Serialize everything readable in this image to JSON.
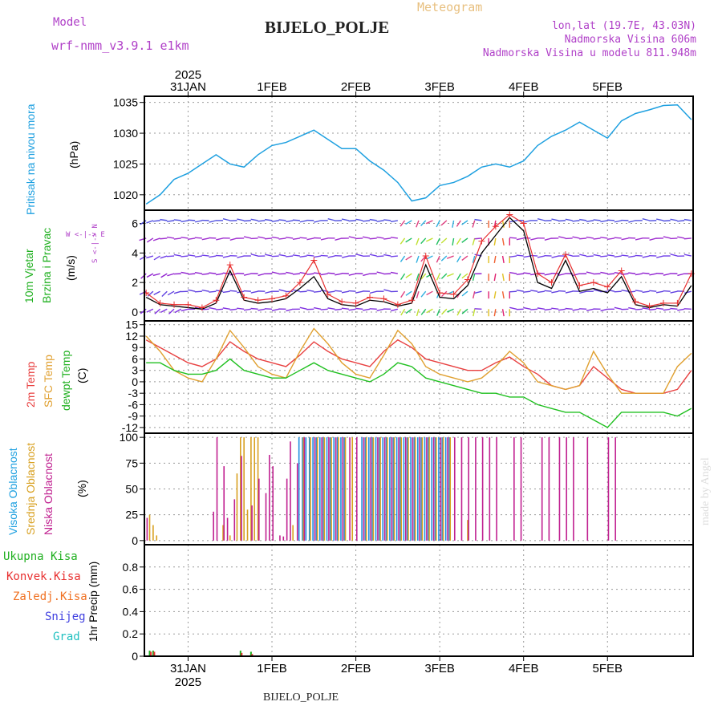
{
  "header": {
    "model_label": "Model",
    "model_name": "wrf-nmm_v3.9.1 e1km",
    "title": "Meteogram",
    "station": "BIJELO_POLJE",
    "lonlat": "lon,lat (19.7E, 43.03N)",
    "altitude": "Nadmorska Visina 606m",
    "model_altitude": "Nadmorska Visina u modelu 811.948m"
  },
  "footer": {
    "station": "BIJELO_POLJE",
    "watermark": "made by Angel"
  },
  "time_axis": {
    "top_year": "2025",
    "bottom_year": "2025",
    "labels": [
      "31JAN",
      "1FEB",
      "2FEB",
      "3FEB",
      "4FEB",
      "5FEB"
    ],
    "start_hour": -12.5,
    "end_hour": 144.5
  },
  "colors": {
    "pressure": "#1ea0e0",
    "wind_speed": "#000000",
    "gust": "#e83030",
    "temp_2m": "#e84040",
    "temp_sfc": "#e0a030",
    "dewpoint": "#20c020",
    "cloud_high": "#2090e0",
    "cloud_mid": "#d8a020",
    "cloud_low": "#c02090",
    "precip_total": "#20b020",
    "precip_conv": "#e83030",
    "freezing": "#f07020",
    "snow": "#4040e0",
    "hail": "#20c0c0"
  },
  "panels": {
    "pressure": {
      "labels": [
        "Pritisak na nivou mora",
        "(hPa)"
      ],
      "ticks": [
        "1020",
        "1025",
        "1030",
        "1035"
      ]
    },
    "wind": {
      "labels": [
        "10m Vjetar",
        "Brzina i Pravac",
        "(m/s)"
      ],
      "compass": "W <-|-> E",
      "compass_v": "S <-|-> N",
      "ticks": [
        "0",
        "2",
        "4",
        "6"
      ]
    },
    "temp": {
      "labels": [
        "2m Temp",
        "SFC Temp",
        "dewpt Temp",
        "(C)"
      ],
      "ticks": [
        "-12",
        "-9",
        "-6",
        "-3",
        "0",
        "3",
        "6",
        "9",
        "12",
        "15"
      ]
    },
    "cloud": {
      "labels": [
        "Visoka Oblacnost",
        "Srednja Oblacnost",
        "Niska Oblacnost",
        "(%)"
      ],
      "ticks": [
        "0",
        "25",
        "50",
        "75",
        "100"
      ]
    },
    "precip": {
      "labels": [
        "Ukupna Kisa",
        "Konvek.Kisa",
        "Zaledj.Kisa",
        "Snijeg",
        "Grad",
        "1hr Precip (mm)"
      ],
      "ticks": [
        "0",
        "0.2",
        "0.4",
        "0.6",
        "0.8"
      ]
    }
  },
  "chart_data": [
    {
      "type": "line",
      "name": "pressure",
      "ylabel": "Pritisak na nivou mora (hPa)",
      "ylim": [
        1017.5,
        1036
      ],
      "x_hours": [
        -12,
        -8,
        -4,
        0,
        4,
        8,
        12,
        16,
        20,
        24,
        28,
        32,
        36,
        40,
        44,
        48,
        52,
        56,
        60,
        64,
        68,
        72,
        76,
        80,
        84,
        88,
        92,
        96,
        100,
        104,
        108,
        112,
        116,
        120,
        124,
        128,
        132,
        136,
        140,
        144
      ],
      "series": [
        {
          "values": [
            1018.5,
            1020,
            1022.5,
            1023.5,
            1025,
            1026.5,
            1025,
            1024.5,
            1026.5,
            1028,
            1028.5,
            1029.5,
            1030.5,
            1029,
            1027.5,
            1027.5,
            1025.5,
            1024,
            1022,
            1019,
            1019.5,
            1021.5,
            1022,
            1023,
            1024.5,
            1025,
            1024.5,
            1025.5,
            1028,
            1029.5,
            1030.5,
            1031.8,
            1030.5,
            1029.2,
            1032,
            1033.2,
            1033.8,
            1034.5,
            1034.6,
            1032.2
          ]
        }
      ]
    },
    {
      "type": "line",
      "name": "wind",
      "ylabel": "(m/s)",
      "ylim": [
        -0.6,
        6.9
      ],
      "x_hours": [
        -12,
        -8,
        -4,
        0,
        4,
        8,
        12,
        16,
        20,
        24,
        28,
        32,
        36,
        40,
        44,
        48,
        52,
        56,
        60,
        64,
        68,
        72,
        76,
        80,
        84,
        88,
        92,
        96,
        100,
        104,
        108,
        112,
        116,
        120,
        124,
        128,
        132,
        136,
        140,
        144
      ],
      "series": [
        {
          "values": [
            1.0,
            0.5,
            0.4,
            0.3,
            0.2,
            0.6,
            2.8,
            0.8,
            0.6,
            0.7,
            0.9,
            1.6,
            2.4,
            0.9,
            0.5,
            0.4,
            0.8,
            0.7,
            0.4,
            0.6,
            3.2,
            1.0,
            0.9,
            1.8,
            4.0,
            5.2,
            6.4,
            5.5,
            2.0,
            1.6,
            3.5,
            1.4,
            1.6,
            1.3,
            2.4,
            0.5,
            0.3,
            0.5,
            0.4,
            1.8
          ]
        },
        {
          "values": [
            1.3,
            0.6,
            0.5,
            0.5,
            0.3,
            0.8,
            3.2,
            1.0,
            0.8,
            0.9,
            1.1,
            2.0,
            3.5,
            1.2,
            0.7,
            0.6,
            1.0,
            0.9,
            0.5,
            0.8,
            3.8,
            1.3,
            1.2,
            2.2,
            4.8,
            5.8,
            6.6,
            6.0,
            2.6,
            2.0,
            3.9,
            1.8,
            2.0,
            1.7,
            2.8,
            0.7,
            0.4,
            0.6,
            0.6,
            2.6
          ]
        }
      ]
    },
    {
      "type": "line",
      "name": "temperature",
      "ylabel": "(C)",
      "ylim": [
        -13.5,
        16
      ],
      "x_hours": [
        -12,
        -8,
        -4,
        0,
        4,
        8,
        12,
        16,
        20,
        24,
        28,
        32,
        36,
        40,
        44,
        48,
        52,
        56,
        60,
        64,
        68,
        72,
        76,
        80,
        84,
        88,
        92,
        96,
        100,
        104,
        108,
        112,
        116,
        120,
        124,
        128,
        132,
        136,
        140,
        144
      ],
      "series": [
        {
          "name": "2m Temp",
          "values": [
            11,
            9,
            7,
            5,
            4,
            6,
            10.5,
            8,
            6,
            5,
            4,
            7,
            10.5,
            8,
            6,
            5,
            4,
            8,
            11,
            9,
            6,
            5,
            4,
            3,
            3,
            5,
            6.5,
            4,
            2,
            -1,
            -2,
            -1,
            4,
            1,
            -2,
            -3,
            -3,
            -3,
            -2,
            3
          ]
        },
        {
          "name": "SFC Temp",
          "values": [
            12,
            8,
            3,
            1,
            0,
            6,
            13.5,
            9,
            4,
            2,
            1,
            8,
            14,
            10,
            5,
            2,
            1,
            7,
            13.5,
            10,
            4,
            2,
            1,
            0,
            1,
            4,
            8,
            5,
            0,
            -1,
            -2,
            -1,
            8,
            2,
            -3,
            -3,
            -3,
            -3,
            4,
            7.5
          ]
        },
        {
          "name": "dewpt Temp",
          "values": [
            5,
            5,
            3,
            2,
            2,
            3,
            6,
            3,
            2,
            1,
            1,
            3,
            5,
            3,
            2,
            1,
            0,
            2,
            5,
            4,
            1,
            0,
            -1,
            -2,
            -3,
            -3,
            -4,
            -4,
            -6,
            -7,
            -8,
            -8,
            -10,
            -12,
            -8,
            -8,
            -8,
            -8,
            -9,
            -7
          ]
        }
      ]
    },
    {
      "type": "bar",
      "name": "cloud cover",
      "ylabel": "(%)",
      "ylim": [
        -4,
        104
      ],
      "series": [
        {
          "name": "Visoka Oblacnost",
          "x_hours": [
            32,
            33,
            34,
            35,
            36,
            37,
            38,
            39,
            40,
            41,
            42,
            43,
            44,
            45,
            50,
            51,
            52,
            53,
            54,
            55,
            56,
            57,
            58,
            59,
            60,
            61,
            62,
            63,
            64,
            65,
            66,
            67,
            68,
            69,
            70,
            71,
            72,
            73,
            74,
            75
          ],
          "values": [
            100,
            100,
            100,
            100,
            100,
            100,
            100,
            100,
            100,
            100,
            100,
            100,
            100,
            100,
            100,
            100,
            100,
            100,
            100,
            100,
            100,
            100,
            100,
            100,
            100,
            100,
            100,
            100,
            100,
            100,
            100,
            100,
            100,
            100,
            100,
            100,
            100,
            100,
            100,
            100
          ]
        },
        {
          "name": "Srednja Oblacnost",
          "x_hours": [
            -11,
            -10,
            -9,
            10,
            12,
            14,
            15,
            16,
            17,
            18,
            19,
            20,
            30,
            33,
            35,
            37,
            39,
            41,
            43,
            45,
            47,
            51,
            53,
            55,
            57,
            59,
            61,
            63,
            65,
            67,
            69,
            71,
            73,
            75,
            80
          ],
          "values": [
            25,
            15,
            5,
            15,
            5,
            65,
            100,
            100,
            30,
            100,
            100,
            100,
            15,
            100,
            100,
            100,
            100,
            100,
            100,
            100,
            100,
            100,
            100,
            100,
            100,
            100,
            100,
            100,
            100,
            100,
            100,
            100,
            100,
            100,
            20
          ]
        },
        {
          "name": "Niska Oblacnost",
          "x_hours": [
            -12,
            7,
            8,
            10,
            11,
            13,
            15,
            18,
            20,
            22,
            23,
            24,
            26,
            27,
            28,
            29,
            31,
            33,
            36,
            38,
            40,
            42,
            44,
            46,
            48,
            50,
            52,
            54,
            56,
            58,
            60,
            62,
            64,
            66,
            68,
            70,
            72,
            74,
            76,
            78,
            80,
            82,
            84,
            86,
            88,
            93,
            95,
            101,
            103,
            106,
            108,
            110,
            114,
            120,
            122
          ],
          "values": [
            22,
            28,
            100,
            72,
            22,
            40,
            82,
            34,
            60,
            46,
            83,
            72,
            5,
            4,
            60,
            96,
            75,
            100,
            100,
            100,
            100,
            100,
            100,
            100,
            100,
            100,
            100,
            100,
            100,
            100,
            100,
            100,
            100,
            100,
            100,
            100,
            100,
            100,
            100,
            100,
            100,
            100,
            100,
            100,
            100,
            100,
            100,
            100,
            100,
            100,
            100,
            100,
            100,
            100,
            100
          ]
        }
      ]
    },
    {
      "type": "bar",
      "name": "precipitation",
      "ylabel": "1hr Precip (mm)",
      "ylim": [
        0,
        1.0
      ],
      "series": [
        {
          "name": "Ukupna Kisa",
          "x_hours": [
            -11,
            -10,
            15,
            18
          ],
          "values": [
            0.05,
            0.05,
            0.05,
            0.04
          ]
        },
        {
          "name": "Konvek.Kisa",
          "x_hours": [
            -11,
            -10,
            15,
            18
          ],
          "values": [
            0.04,
            0.04,
            0.03,
            0.02
          ]
        },
        {
          "name": "Zaledj.Kisa",
          "x_hours": [],
          "values": []
        },
        {
          "name": "Snijeg",
          "x_hours": [],
          "values": []
        },
        {
          "name": "Grad",
          "x_hours": [],
          "values": []
        }
      ]
    }
  ]
}
